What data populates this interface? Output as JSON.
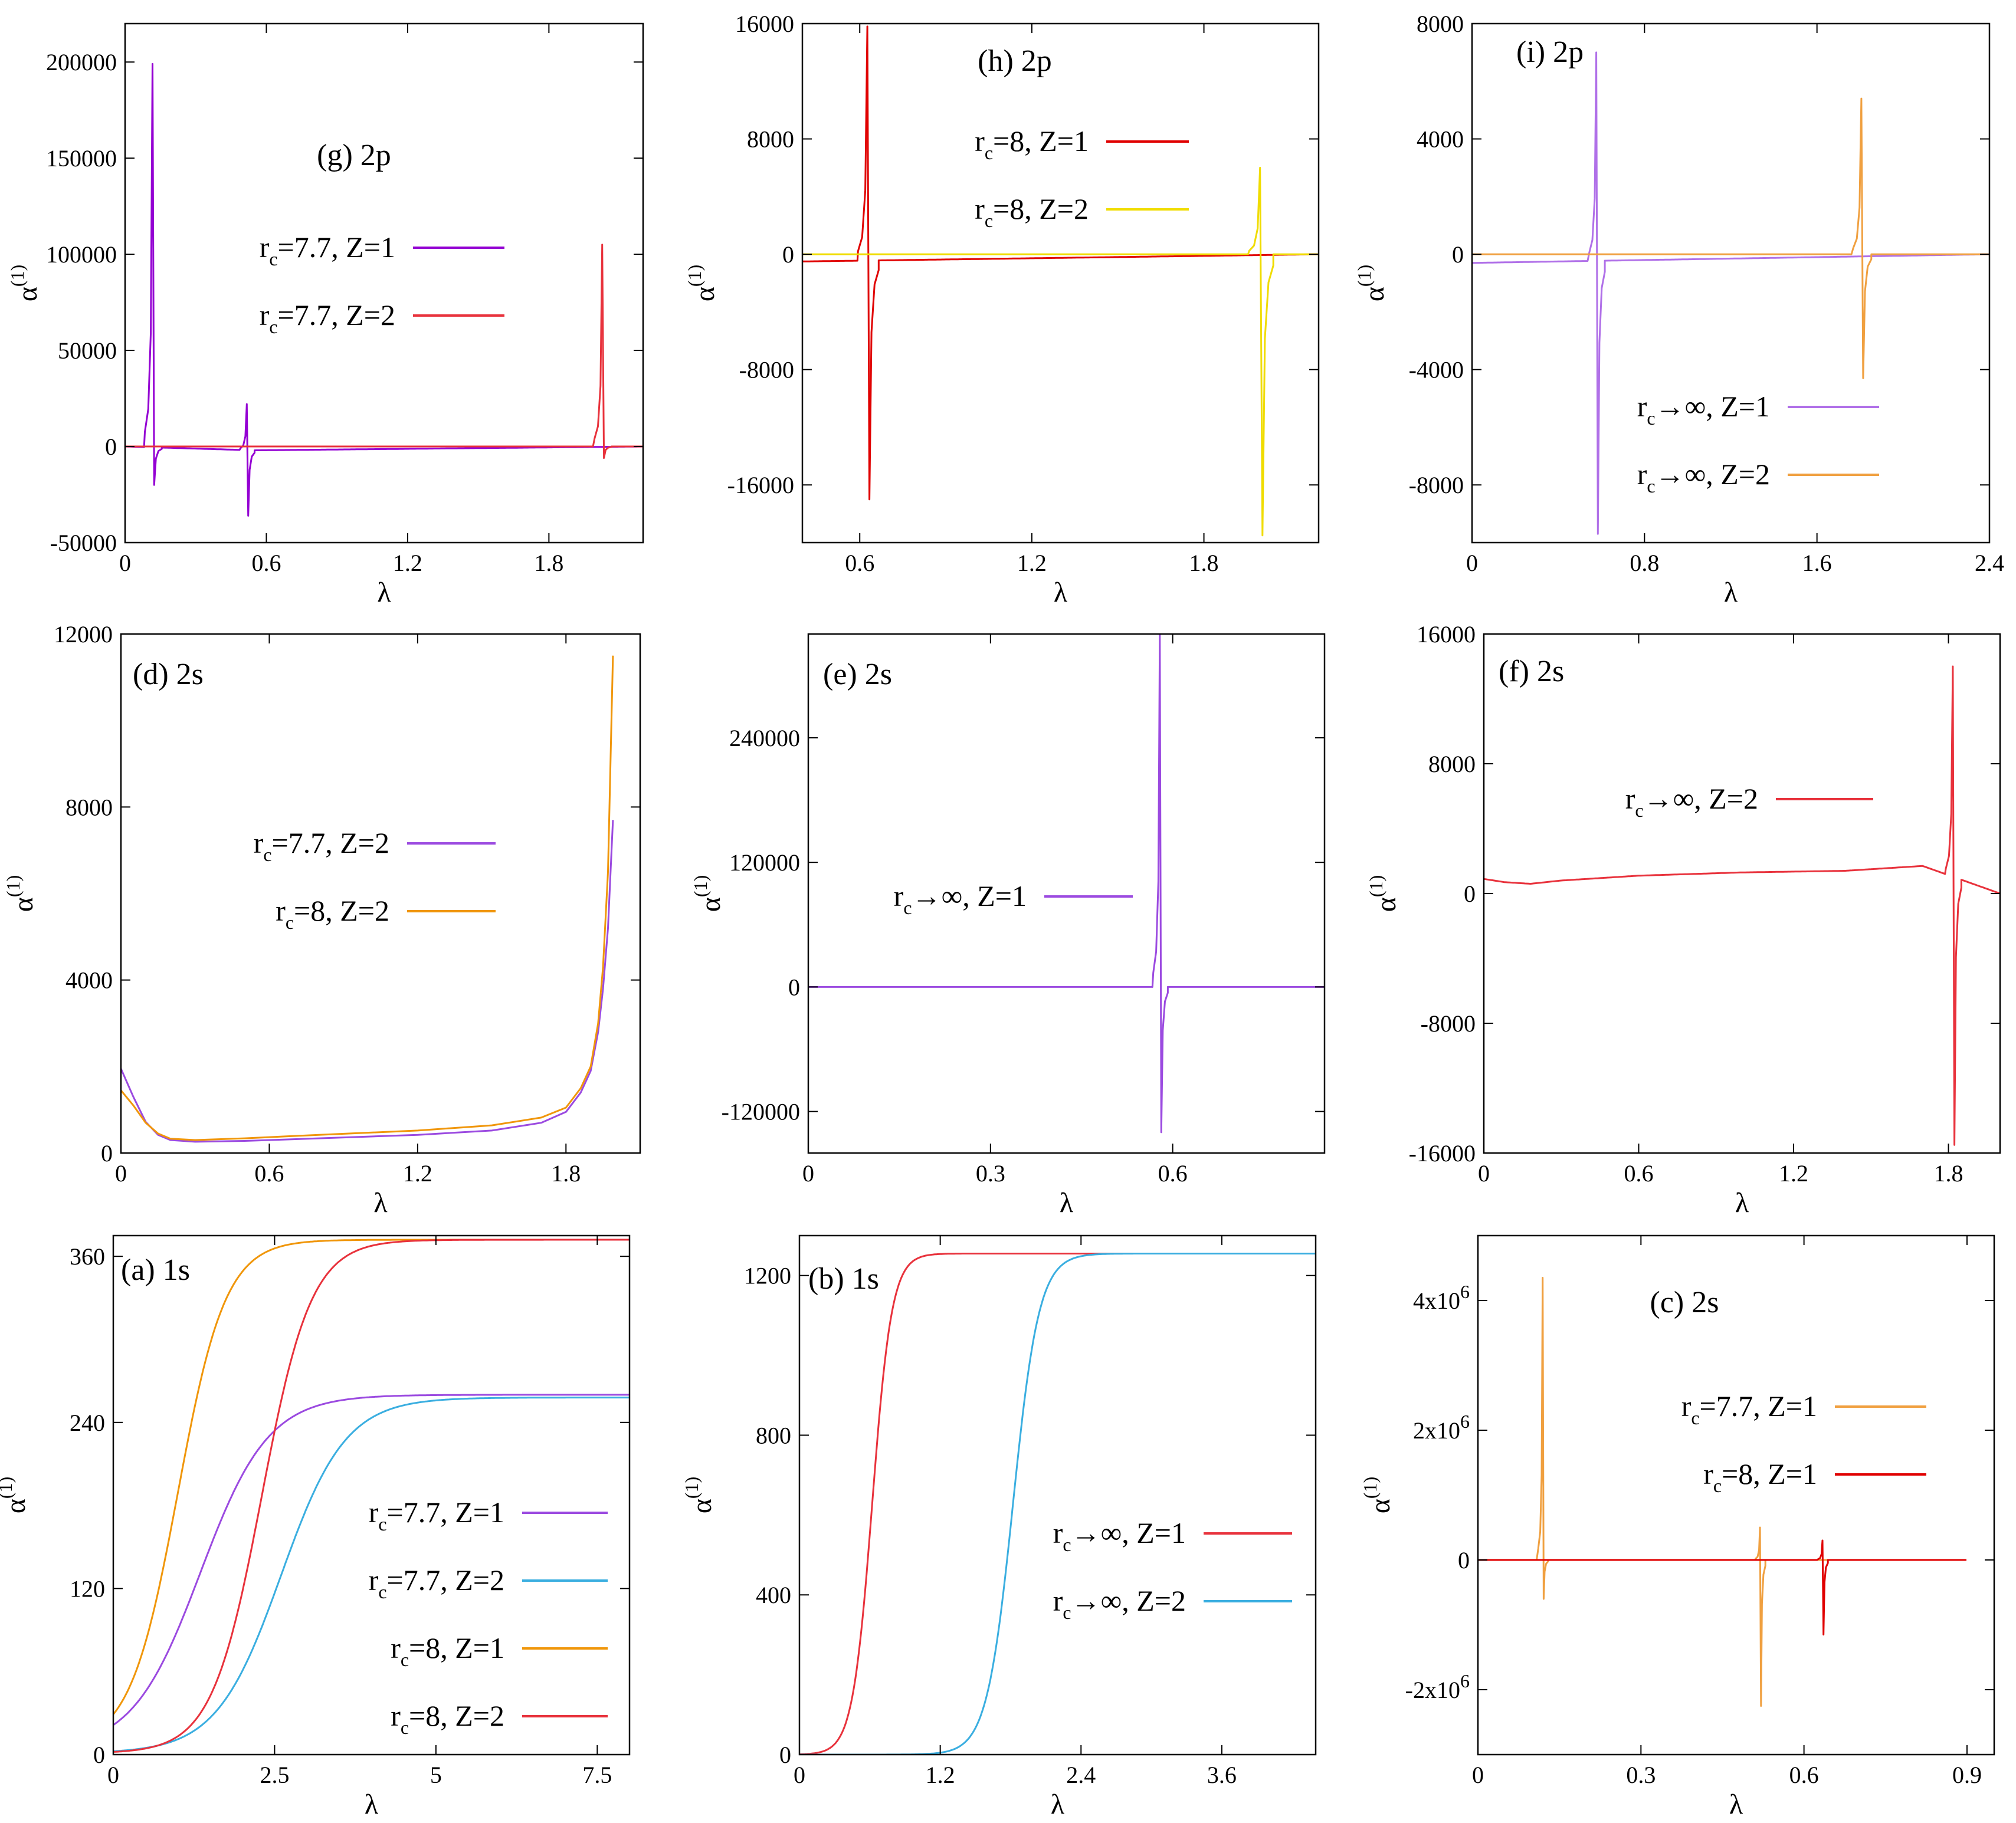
{
  "chart_data": [
    {
      "id": "g",
      "type": "line",
      "title": "(g) 2p",
      "xlabel": "λ",
      "ylabel": "α(1)",
      "xlim": [
        0,
        2.2
      ],
      "ylim": [
        -50000,
        220000
      ],
      "xticks": [
        0,
        0.6,
        1.2,
        1.8
      ],
      "xtick_labels": [
        "0",
        "0.6",
        "1.2",
        "1.8"
      ],
      "yticks": [
        -50000,
        0,
        50000,
        100000,
        150000,
        200000
      ],
      "ytick_labels": [
        "-50000",
        "0",
        "50000",
        "100000",
        "150000",
        "200000"
      ],
      "legend_position": "upper-middle",
      "series": [
        {
          "name": "rc=7.7, Z=1",
          "legend": {
            "r": "r",
            "sub": "c",
            "rest": "=7.7, Z=1"
          },
          "color": "#9400d3",
          "baseline": [
            [
              0,
              0
            ],
            [
              0.55,
              -2000
            ],
            [
              2.2,
              0
            ]
          ],
          "resonances": [
            {
              "x": 0.12,
              "up": 199000,
              "down": -20000,
              "w": 0.012
            },
            {
              "x": 0.52,
              "up": 22000,
              "down": -36000,
              "w": 0.01
            }
          ]
        },
        {
          "name": "rc=7.7, Z=2",
          "legend": {
            "r": "r",
            "sub": "c",
            "rest": "=7.7, Z=2"
          },
          "color": "#e8323c",
          "baseline": [
            [
              0,
              0
            ],
            [
              2.2,
              0
            ]
          ],
          "resonances": [
            {
              "x": 2.03,
              "up": 105000,
              "down": -6000,
              "w": 0.012
            }
          ]
        }
      ]
    },
    {
      "id": "h",
      "type": "line",
      "title": "(h) 2p",
      "xlabel": "λ",
      "ylabel": "α(1)",
      "xlim": [
        0.4,
        2.2
      ],
      "ylim": [
        -20000,
        16000
      ],
      "xticks": [
        0.6,
        1.2,
        1.8
      ],
      "xtick_labels": [
        "0.6",
        "1.2",
        "1.8"
      ],
      "yticks": [
        -16000,
        -8000,
        0,
        8000,
        16000
      ],
      "ytick_labels": [
        "-16000",
        "-8000",
        "0",
        "8000",
        "16000"
      ],
      "legend_position": "upper-middle",
      "series": [
        {
          "name": "rc=8, Z=1",
          "legend": {
            "r": "r",
            "sub": "c",
            "rest": "=8, Z=1"
          },
          "color": "#e00000",
          "baseline": [
            [
              0.4,
              -500
            ],
            [
              2.2,
              0
            ]
          ],
          "resonances": [
            {
              "x": 0.63,
              "up": 15800,
              "down": -17000,
              "w": 0.012
            }
          ]
        },
        {
          "name": "rc=8, Z=2",
          "legend": {
            "r": "r",
            "sub": "c",
            "rest": "=8, Z=2"
          },
          "color": "#f0dc00",
          "baseline": [
            [
              0.4,
              0
            ],
            [
              2.2,
              0
            ]
          ],
          "resonances": [
            {
              "x": 2.0,
              "up": 6000,
              "down": -19500,
              "w": 0.014
            }
          ]
        }
      ]
    },
    {
      "id": "i",
      "type": "line",
      "title": "(i) 2p",
      "xlabel": "λ",
      "ylabel": "α(1)",
      "xlim": [
        0,
        2.4
      ],
      "ylim": [
        -10000,
        8000
      ],
      "xticks": [
        0,
        0.8,
        1.6,
        2.4
      ],
      "xtick_labels": [
        "0",
        "0.8",
        "1.6",
        "2.4"
      ],
      "yticks": [
        -8000,
        -4000,
        0,
        4000,
        8000
      ],
      "ytick_labels": [
        "-8000",
        "-4000",
        "0",
        "4000",
        "8000"
      ],
      "legend_position": "lower-right",
      "series": [
        {
          "name": "rc→∞, Z=1",
          "legend": {
            "r": "r",
            "sub": "c",
            "rest": "→∞, Z=1"
          },
          "color": "#b070e8",
          "baseline": [
            [
              0,
              -300
            ],
            [
              2.4,
              0
            ]
          ],
          "resonances": [
            {
              "x": 0.58,
              "up": 7000,
              "down": -9700,
              "w": 0.012
            }
          ]
        },
        {
          "name": "rc→∞, Z=2",
          "legend": {
            "r": "r",
            "sub": "c",
            "rest": "→∞, Z=2"
          },
          "color": "#f0a040",
          "baseline": [
            [
              0,
              0
            ],
            [
              2.4,
              0
            ]
          ],
          "resonances": [
            {
              "x": 1.81,
              "up": 5400,
              "down": -4300,
              "w": 0.014
            }
          ]
        }
      ]
    },
    {
      "id": "d",
      "type": "line",
      "title": "(d) 2s",
      "xlabel": "λ",
      "ylabel": "α(1)",
      "xlim": [
        0,
        2.1
      ],
      "ylim": [
        0,
        12000
      ],
      "xticks": [
        0,
        0.6,
        1.2,
        1.8
      ],
      "xtick_labels": [
        "0",
        "0.6",
        "1.2",
        "1.8"
      ],
      "yticks": [
        0,
        4000,
        8000,
        12000
      ],
      "ytick_labels": [
        "0",
        "4000",
        "8000",
        "12000"
      ],
      "legend_position": "middle",
      "series": [
        {
          "name": "rc=7.7, Z=2",
          "legend": {
            "r": "r",
            "sub": "c",
            "rest": "=7.7, Z=2"
          },
          "color": "#9b4ae0",
          "points": [
            [
              0,
              1950
            ],
            [
              0.05,
              1300
            ],
            [
              0.1,
              720
            ],
            [
              0.15,
              420
            ],
            [
              0.2,
              300
            ],
            [
              0.3,
              260
            ],
            [
              0.5,
              280
            ],
            [
              0.8,
              340
            ],
            [
              1.2,
              420
            ],
            [
              1.5,
              520
            ],
            [
              1.7,
              700
            ],
            [
              1.8,
              950
            ],
            [
              1.86,
              1400
            ],
            [
              1.9,
              1900
            ],
            [
              1.93,
              2800
            ],
            [
              1.95,
              3800
            ],
            [
              1.97,
              5200
            ],
            [
              1.99,
              7700
            ]
          ]
        },
        {
          "name": "rc=8, Z=2",
          "legend": {
            "r": "r",
            "sub": "c",
            "rest": "=8, Z=2"
          },
          "color": "#f0960a",
          "points": [
            [
              0,
              1450
            ],
            [
              0.05,
              1100
            ],
            [
              0.1,
              700
            ],
            [
              0.15,
              450
            ],
            [
              0.2,
              330
            ],
            [
              0.3,
              300
            ],
            [
              0.5,
              340
            ],
            [
              0.8,
              420
            ],
            [
              1.2,
              520
            ],
            [
              1.5,
              640
            ],
            [
              1.7,
              820
            ],
            [
              1.8,
              1050
            ],
            [
              1.86,
              1500
            ],
            [
              1.9,
              2000
            ],
            [
              1.93,
              3000
            ],
            [
              1.95,
              4300
            ],
            [
              1.97,
              6500
            ],
            [
              1.99,
              11500
            ]
          ]
        }
      ]
    },
    {
      "id": "e",
      "type": "line",
      "title": "(e) 2s",
      "xlabel": "λ",
      "ylabel": "α(1)",
      "xlim": [
        0,
        0.85
      ],
      "ylim": [
        -160000,
        340000
      ],
      "xticks": [
        0,
        0.3,
        0.6
      ],
      "xtick_labels": [
        "0",
        "0.3",
        "0.6"
      ],
      "yticks": [
        -120000,
        0,
        120000,
        240000
      ],
      "ytick_labels": [
        "-120000",
        "0",
        "120000",
        "240000"
      ],
      "legend_position": "middle-left",
      "series": [
        {
          "name": "rc→∞, Z=1",
          "legend": {
            "r": "r",
            "sub": "c",
            "rest": "→∞, Z=1"
          },
          "color": "#9b4ae0",
          "baseline": [
            [
              0,
              0
            ],
            [
              0.85,
              0
            ]
          ],
          "resonances": [
            {
              "x": 0.58,
              "up": 340000,
              "down": -140000,
              "w": 0.004
            }
          ]
        }
      ]
    },
    {
      "id": "f",
      "type": "line",
      "title": "(f) 2s",
      "xlabel": "λ",
      "ylabel": "α(1)",
      "xlim": [
        0,
        2.0
      ],
      "ylim": [
        -16000,
        16000
      ],
      "xticks": [
        0,
        0.6,
        1.2,
        1.8
      ],
      "xtick_labels": [
        "0",
        "0.6",
        "1.2",
        "1.8"
      ],
      "yticks": [
        -16000,
        -8000,
        0,
        8000,
        16000
      ],
      "ytick_labels": [
        "-16000",
        "-8000",
        "0",
        "8000",
        "16000"
      ],
      "legend_position": "upper-middle",
      "series": [
        {
          "name": "rc→∞, Z=2",
          "legend": {
            "r": "r",
            "sub": "c",
            "rest": "→∞, Z=2"
          },
          "color": "#e8323c",
          "baseline": [
            [
              0,
              900
            ],
            [
              0.08,
              700
            ],
            [
              0.18,
              600
            ],
            [
              0.3,
              800
            ],
            [
              0.6,
              1100
            ],
            [
              1.0,
              1300
            ],
            [
              1.4,
              1400
            ],
            [
              1.7,
              1700
            ],
            [
              2.0,
              0
            ]
          ],
          "resonances": [
            {
              "x": 1.82,
              "up": 14000,
              "down": -15500,
              "w": 0.01
            }
          ]
        }
      ]
    },
    {
      "id": "a",
      "type": "line",
      "title": "(a) 1s",
      "xlabel": "λ",
      "ylabel": "α(1)",
      "xlim": [
        0,
        8
      ],
      "ylim": [
        0,
        375
      ],
      "xticks": [
        0,
        2.5,
        5,
        7.5
      ],
      "xtick_labels": [
        "0",
        "2.5",
        "5",
        "7.5"
      ],
      "yticks": [
        0,
        120,
        240,
        360
      ],
      "ytick_labels": [
        "0",
        "120",
        "240",
        "360"
      ],
      "legend_position": "lower-right",
      "series": [
        {
          "name": "rc=7.7, Z=1",
          "legend": {
            "r": "r",
            "sub": "c",
            "rest": "=7.7, Z=1"
          },
          "color": "#9b4ae0",
          "sigmoid": {
            "low": 3,
            "high": 260,
            "mid": 1.35,
            "k": 1.9
          }
        },
        {
          "name": "rc=7.7, Z=2",
          "legend": {
            "r": "r",
            "sub": "c",
            "rest": "=7.7, Z=2"
          },
          "color": "#3aaee0",
          "sigmoid": {
            "low": 1,
            "high": 258,
            "mid": 2.6,
            "k": 2.0
          }
        },
        {
          "name": "rc=8, Z=1",
          "legend": {
            "r": "r",
            "sub": "c",
            "rest": "=8, Z=1"
          },
          "color": "#f0960a",
          "sigmoid": {
            "low": 6,
            "high": 372,
            "mid": 1.0,
            "k": 2.7
          }
        },
        {
          "name": "rc=8, Z=2",
          "legend": {
            "r": "r",
            "sub": "c",
            "rest": "=8, Z=2"
          },
          "color": "#e8323c",
          "sigmoid": {
            "low": 1,
            "high": 372,
            "mid": 2.3,
            "k": 2.6
          }
        }
      ]
    },
    {
      "id": "b",
      "type": "line",
      "title": "(b) 1s",
      "xlabel": "λ",
      "ylabel": "α(1)",
      "xlim": [
        0,
        4.4
      ],
      "ylim": [
        0,
        1300
      ],
      "xticks": [
        0,
        1.2,
        2.4,
        3.6
      ],
      "xtick_labels": [
        "0",
        "1.2",
        "2.4",
        "3.6"
      ],
      "yticks": [
        0,
        400,
        800,
        1200
      ],
      "ytick_labels": [
        "0",
        "400",
        "800",
        "1200"
      ],
      "legend_position": "lower-right",
      "series": [
        {
          "name": "rc→∞, Z=1",
          "legend": {
            "r": "r",
            "sub": "c",
            "rest": "→∞, Z=1"
          },
          "color": "#e8323c",
          "sigmoid": {
            "low": 0,
            "high": 1255,
            "mid": 0.62,
            "k": 12
          }
        },
        {
          "name": "rc→∞, Z=2",
          "legend": {
            "r": "r",
            "sub": "c",
            "rest": "→∞, Z=2"
          },
          "color": "#3aaee0",
          "sigmoid": {
            "low": 0,
            "high": 1255,
            "mid": 1.82,
            "k": 9
          }
        }
      ]
    },
    {
      "id": "c",
      "type": "line",
      "title": "(c) 2s",
      "xlabel": "λ",
      "ylabel": "α(1)",
      "xlim": [
        0,
        0.95
      ],
      "ylim": [
        -3000000,
        5000000
      ],
      "xticks": [
        0,
        0.3,
        0.6,
        0.9
      ],
      "xtick_labels": [
        "0",
        "0.3",
        "0.6",
        "0.9"
      ],
      "yticks": [
        -2000000,
        0,
        2000000,
        4000000
      ],
      "ytick_labels": [
        [
          "-2x10",
          "6"
        ],
        [
          "0",
          ""
        ],
        [
          "2x10",
          "6"
        ],
        [
          "4x10",
          "6"
        ]
      ],
      "legend_position": "upper-right",
      "series": [
        {
          "name": "rc=7.7, Z=1",
          "legend": {
            "r": "r",
            "sub": "c",
            "rest": "=7.7, Z=1"
          },
          "color": "#f0a040",
          "baseline": [
            [
              0,
              0
            ],
            [
              0.9,
              0
            ]
          ],
          "resonances": [
            {
              "x": 0.12,
              "up": 4350000,
              "down": -600000,
              "w": 0.003
            },
            {
              "x": 0.52,
              "up": 500000,
              "down": -2250000,
              "w": 0.003
            }
          ]
        },
        {
          "name": "rc=8, Z=1",
          "legend": {
            "r": "r",
            "sub": "c",
            "rest": "=8, Z=1"
          },
          "color": "#e00000",
          "baseline": [
            [
              0,
              0
            ],
            [
              0.9,
              0
            ]
          ],
          "resonances": [
            {
              "x": 0.635,
              "up": 300000,
              "down": -1150000,
              "w": 0.003
            }
          ]
        }
      ]
    }
  ]
}
